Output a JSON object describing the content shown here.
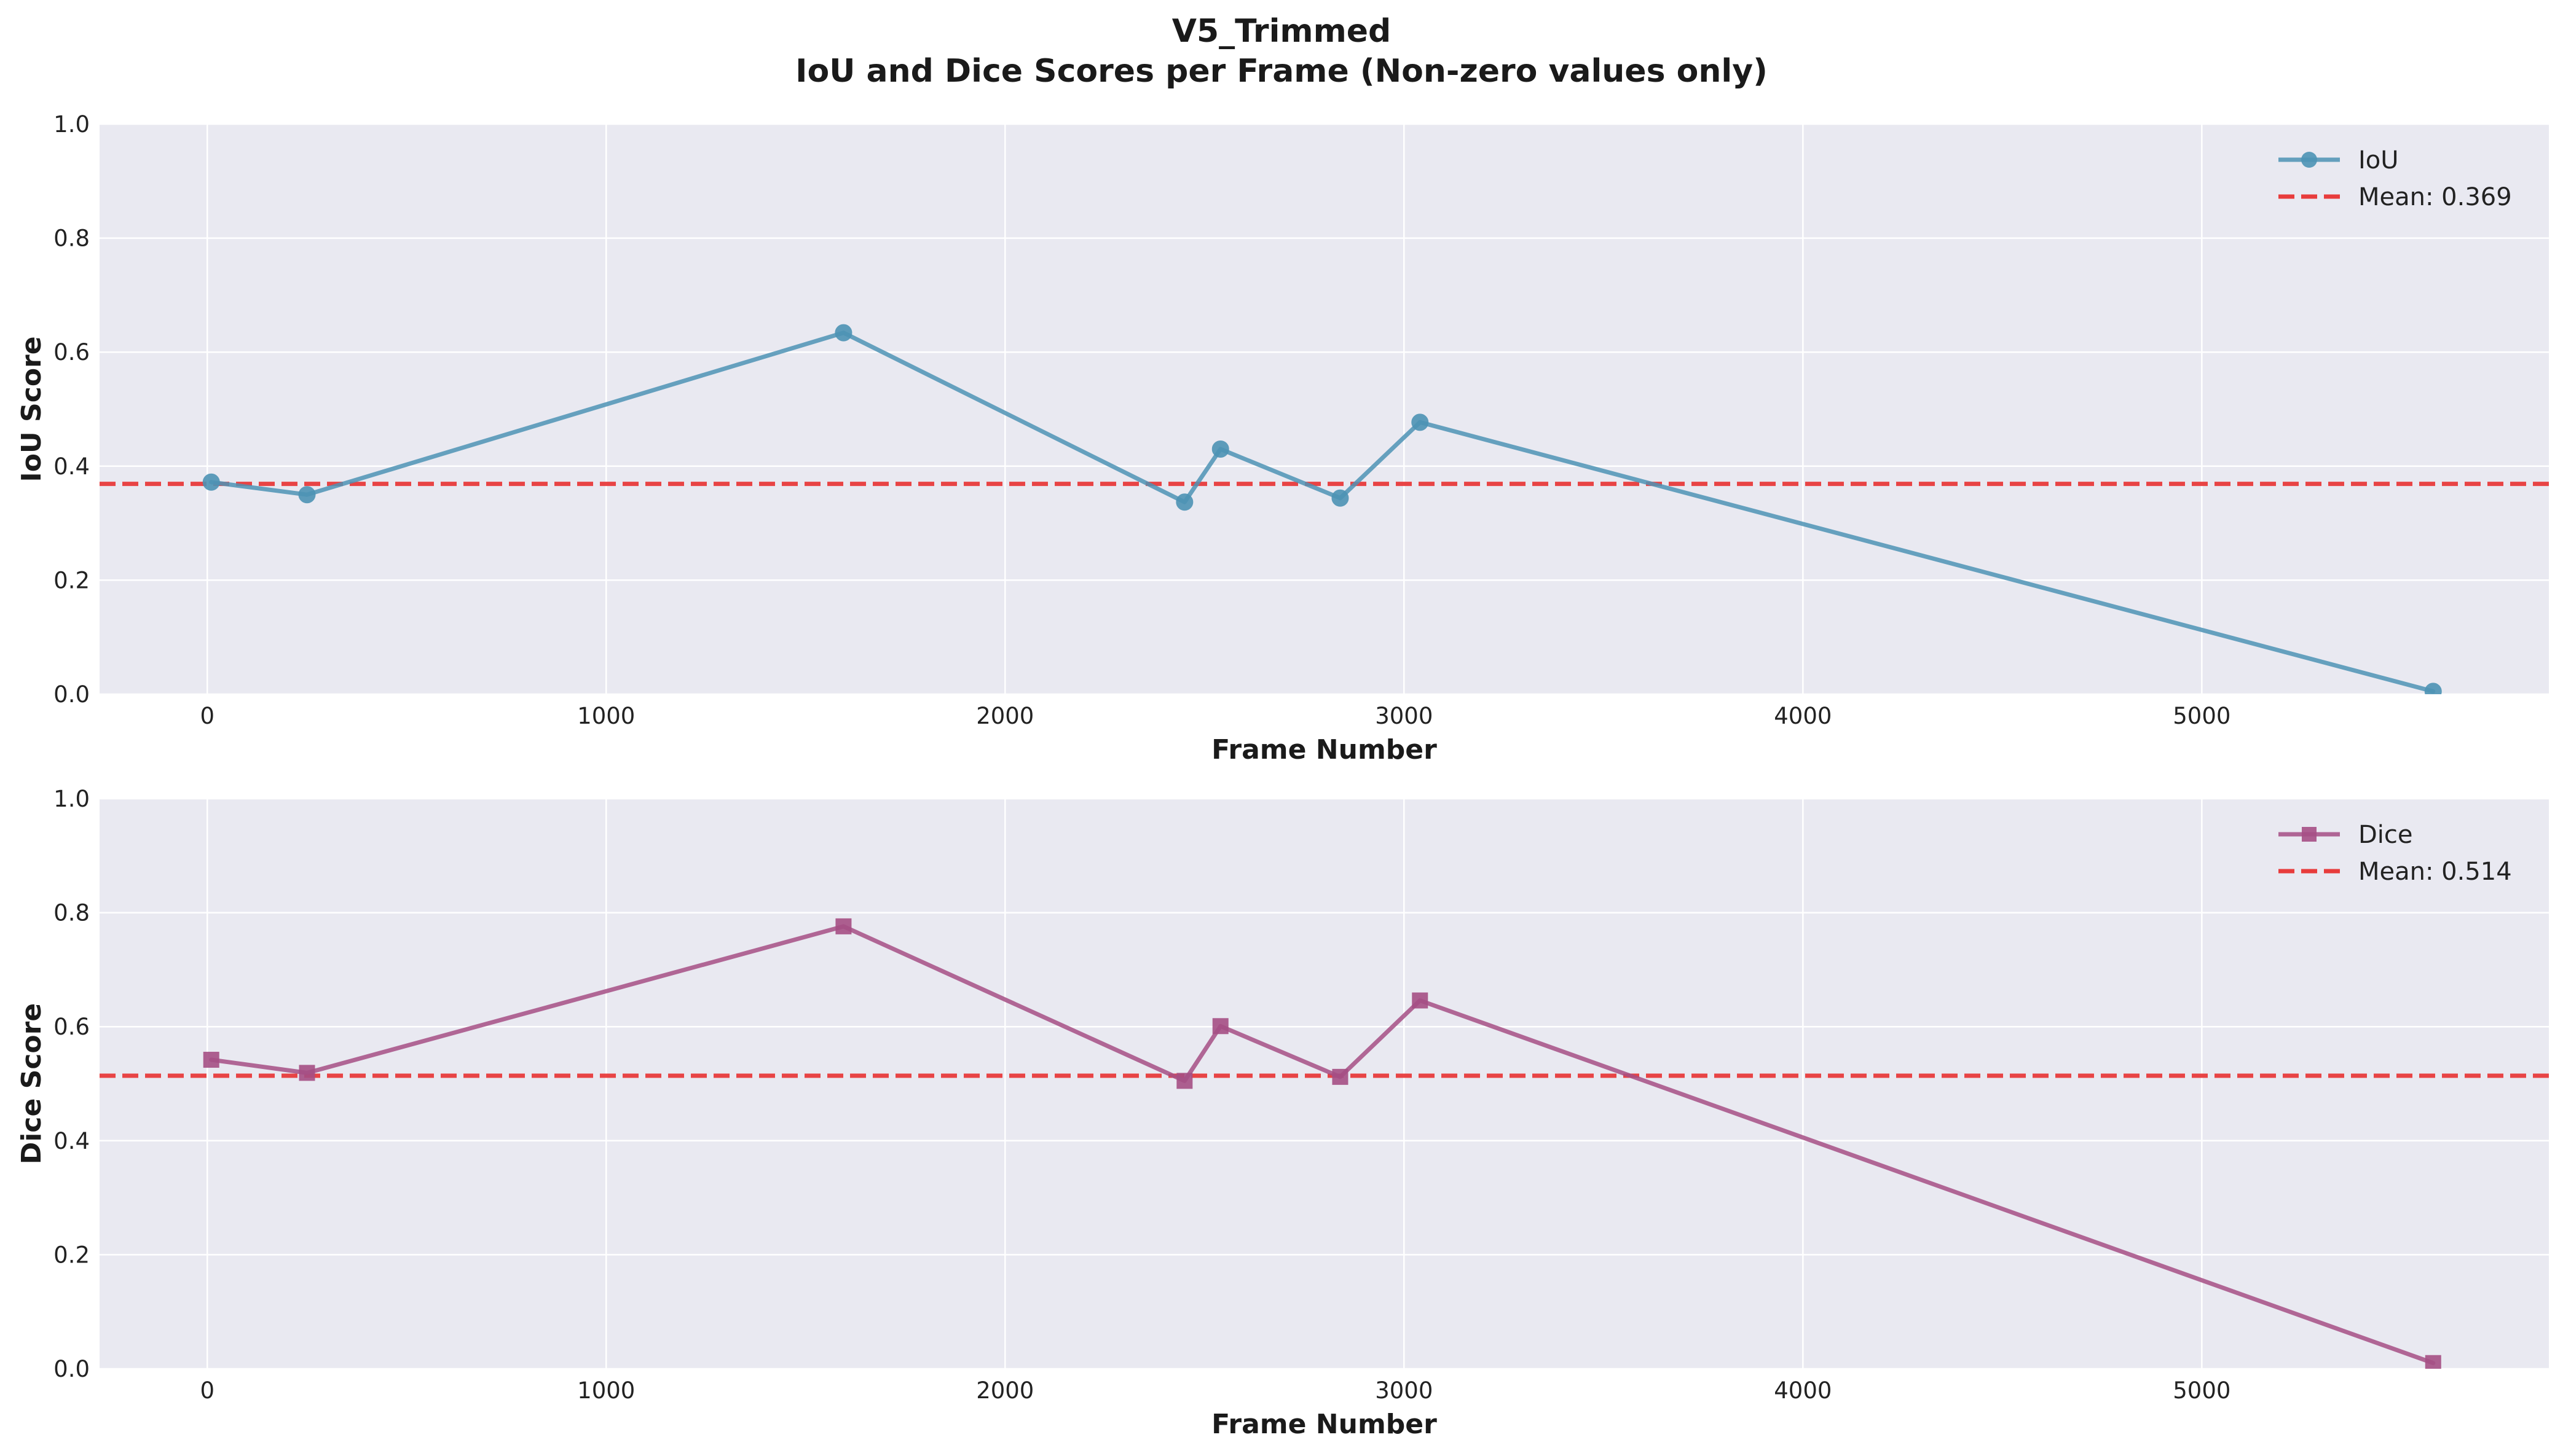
{
  "figure": {
    "title": "V5_Trimmed",
    "subtitle": "IoU and Dice Scores per Frame (Non-zero values only)"
  },
  "colors": {
    "background": "#ffffff",
    "plot_background": "#e9e9f1",
    "grid": "#ffffff",
    "iou_series": "#4d93b5",
    "dice_series": "#a64f85",
    "mean_line": "#e83c3c"
  },
  "chart_data": [
    {
      "type": "line",
      "name": "iou",
      "xlabel": "Frame Number",
      "ylabel": "IoU Score",
      "xlim": [
        -270,
        5870
      ],
      "ylim": [
        0,
        1
      ],
      "xticks": [
        0,
        1000,
        2000,
        3000,
        4000,
        5000
      ],
      "yticks": [
        0.0,
        0.2,
        0.4,
        0.6,
        0.8,
        1.0
      ],
      "xtick_labels": [
        "0",
        "1000",
        "2000",
        "3000",
        "4000",
        "5000"
      ],
      "ytick_labels": [
        "0.0",
        "0.2",
        "0.4",
        "0.6",
        "0.8",
        "1.0"
      ],
      "grid": true,
      "legend_position": "upper right",
      "marker": "circle",
      "series": [
        {
          "name": "IoU",
          "x": [
            10,
            250,
            1595,
            2450,
            2540,
            2840,
            3040,
            5580
          ],
          "y": [
            0.372,
            0.35,
            0.634,
            0.337,
            0.43,
            0.344,
            0.477,
            0.005
          ]
        }
      ],
      "mean": 0.369,
      "mean_label": "Mean: 0.369"
    },
    {
      "type": "line",
      "name": "dice",
      "xlabel": "Frame Number",
      "ylabel": "Dice Score",
      "xlim": [
        -270,
        5870
      ],
      "ylim": [
        0,
        1
      ],
      "xticks": [
        0,
        1000,
        2000,
        3000,
        4000,
        5000
      ],
      "yticks": [
        0.0,
        0.2,
        0.4,
        0.6,
        0.8,
        1.0
      ],
      "xtick_labels": [
        "0",
        "1000",
        "2000",
        "3000",
        "4000",
        "5000"
      ],
      "ytick_labels": [
        "0.0",
        "0.2",
        "0.4",
        "0.6",
        "0.8",
        "1.0"
      ],
      "grid": true,
      "legend_position": "upper right",
      "marker": "square",
      "series": [
        {
          "name": "Dice",
          "x": [
            10,
            250,
            1595,
            2450,
            2540,
            2840,
            3040,
            5580
          ],
          "y": [
            0.542,
            0.519,
            0.776,
            0.505,
            0.601,
            0.512,
            0.646,
            0.01
          ]
        }
      ],
      "mean": 0.514,
      "mean_label": "Mean: 0.514"
    }
  ]
}
